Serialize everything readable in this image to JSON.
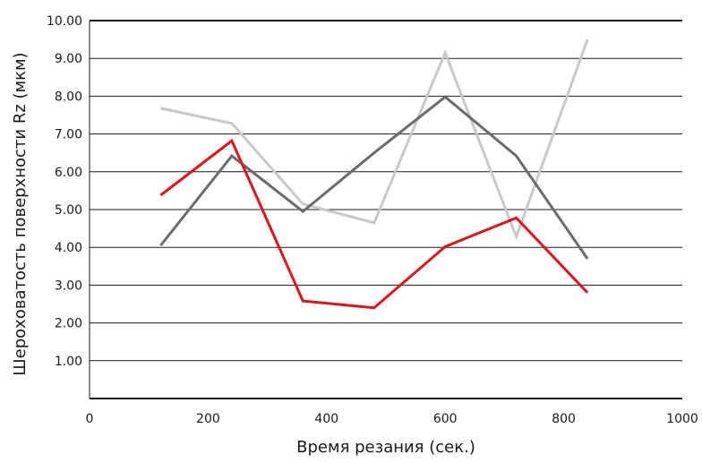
{
  "chart_data": {
    "type": "line",
    "title": "",
    "xlabel": "Время резания (сек.)",
    "ylabel": "Шероховатость поверхности Rz (мкм)",
    "xlim": [
      0,
      1000
    ],
    "ylim": [
      0,
      10
    ],
    "x_ticks": [
      "0",
      "200",
      "400",
      "600",
      "800",
      "1000"
    ],
    "y_ticks": [
      "1.00",
      "2.00",
      "3.00",
      "4.00",
      "5.00",
      "6.00",
      "7.00",
      "8.00",
      "9.00",
      "10.00"
    ],
    "grid": "horizontal",
    "legend": "none",
    "x": [
      120,
      240,
      360,
      480,
      600,
      720,
      840
    ],
    "series": [
      {
        "color": "#c8c8c8",
        "values": [
          7.68,
          7.28,
          5.15,
          4.65,
          9.15,
          4.28,
          9.5
        ]
      },
      {
        "color": "#6b6b6b",
        "values": [
          4.05,
          6.42,
          4.95,
          6.5,
          7.98,
          6.42,
          3.7
        ]
      },
      {
        "color": "#e0131c",
        "values": [
          5.38,
          6.82,
          2.58,
          2.4,
          4.02,
          4.78,
          2.8
        ]
      }
    ]
  }
}
